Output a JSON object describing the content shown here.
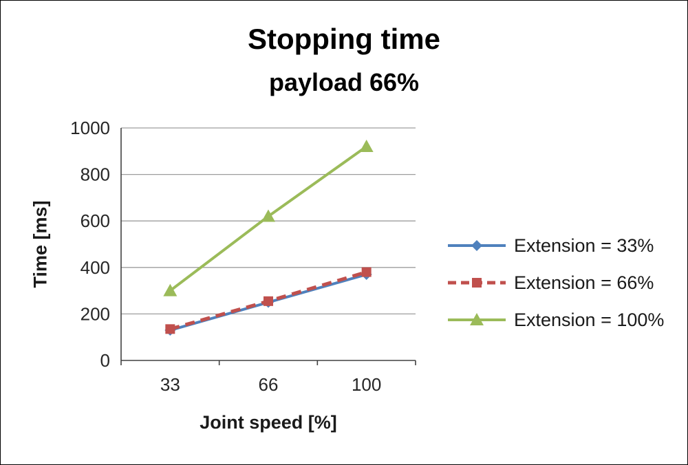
{
  "chart_data": {
    "type": "line",
    "title": "Stopping time",
    "subtitle": "payload 66%",
    "categories": [
      "33",
      "66",
      "100"
    ],
    "series": [
      {
        "name": "Extension = 33%",
        "values": [
          130,
          250,
          370
        ],
        "color": "#4F81BD",
        "marker": "diamond",
        "dash": "solid"
      },
      {
        "name": "Extension = 66%",
        "values": [
          135,
          255,
          380
        ],
        "color": "#C0504D",
        "marker": "square",
        "dash": "dashed"
      },
      {
        "name": "Extension = 100%",
        "values": [
          300,
          620,
          920
        ],
        "color": "#9BBB59",
        "marker": "triangle",
        "dash": "solid"
      }
    ],
    "xlabel": "Joint speed [%]",
    "ylabel": "Time [ms]",
    "ylim": [
      0,
      1000
    ],
    "ytick_step": 200,
    "grid": true,
    "legend_position": "right",
    "gridline_color": "#9d9d9d",
    "axis_color": "#404040",
    "tick_label_color": "#262626"
  }
}
